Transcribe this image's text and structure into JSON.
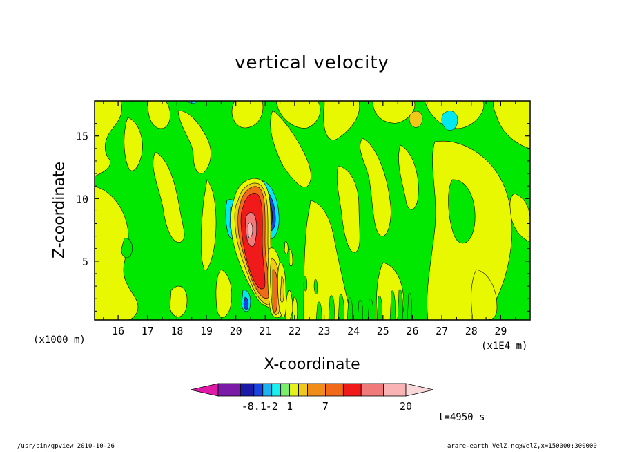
{
  "chart_data": {
    "type": "contour",
    "title": "vertical velocity",
    "xlabel": "X-coordinate",
    "ylabel": "Z-coordinate",
    "x_unit_left": "(x1000 m)",
    "x_unit_right": "(x1E4 m)",
    "xlim": [
      15.2,
      30.0
    ],
    "ylim": [
      0.3,
      17.8
    ],
    "x_ticks": [
      "16",
      "17",
      "18",
      "19",
      "20",
      "21",
      "22",
      "23",
      "24",
      "25",
      "26",
      "27",
      "28",
      "29"
    ],
    "y_ticks": [
      "5",
      "10",
      "15"
    ],
    "x_tick_values": [
      16,
      17,
      18,
      19,
      20,
      21,
      22,
      23,
      24,
      25,
      26,
      27,
      28,
      29
    ],
    "y_tick_values": [
      5,
      10,
      15
    ],
    "colorbar": {
      "colors": [
        "#e01aa6",
        "#7a1aa6",
        "#1a1aa6",
        "#1a44e0",
        "#1ab4f0",
        "#1af0f0",
        "#7af06a",
        "#e6f01a",
        "#f0c81a",
        "#f08c1a",
        "#f06a1a",
        "#f01a1a",
        "#f07a7a",
        "#f8b4b4",
        "#f8d8d8"
      ],
      "labels": [
        {
          "text": "-8.1",
          "slot": 2
        },
        {
          "text": "-2",
          "slot": 4
        },
        {
          "text": "1",
          "slot": 6
        },
        {
          "text": "7",
          "slot": 9
        },
        {
          "text": "20",
          "slot": 14
        }
      ]
    },
    "field_colors": {
      "background_positive": "#e8f800",
      "background_zero": "#00e800",
      "updraft_core": "#f01a1a",
      "updraft_edge": "#f06a1a",
      "updraft_peak": "#f8b4b4",
      "downdraft": "#1a1aa6",
      "downdraft_edge": "#1ab4f0",
      "cyan": "#00e8f0"
    }
  },
  "time_label": "t=4950 s",
  "footer": {
    "left": "/usr/bin/gpview   2010-10-26",
    "right": "arare-earth_VelZ.nc@VelZ,x=150000:300000"
  }
}
